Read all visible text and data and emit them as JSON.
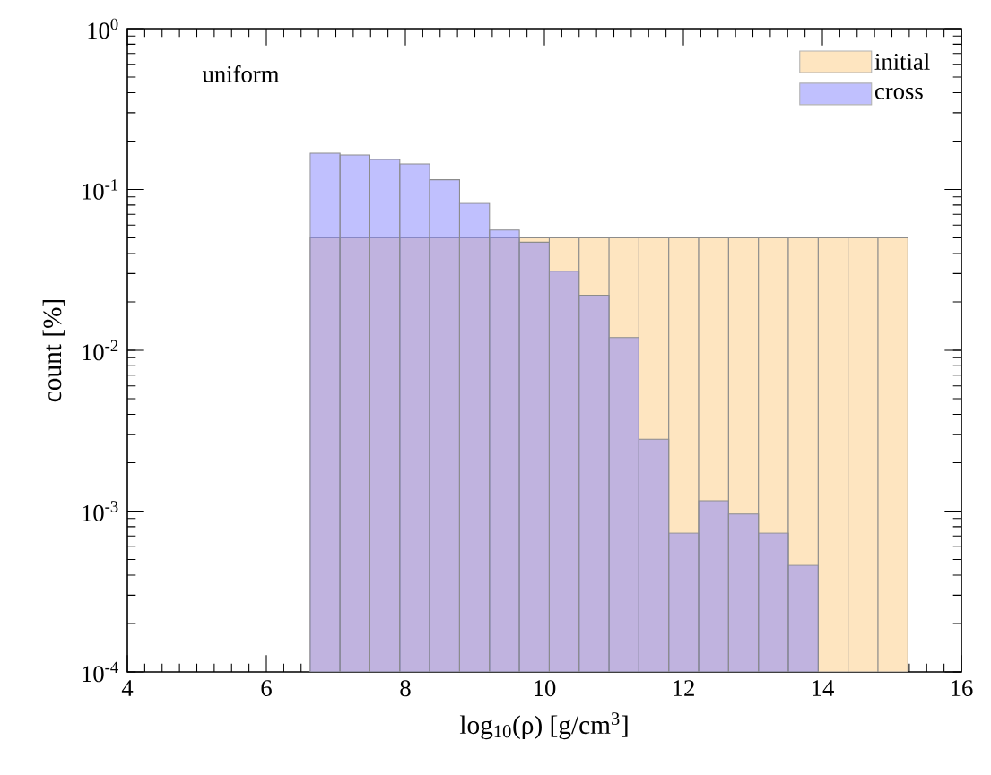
{
  "chart_data": {
    "type": "histogram",
    "xlabel": "log$_{10}$(ρ) [g/cm$^{3}$]",
    "ylabel": "count [%]",
    "annotations": [
      "uniform"
    ],
    "bins": [
      6.63,
      7.06,
      7.49,
      7.92,
      8.35,
      8.78,
      9.21,
      9.64,
      10.07,
      10.5,
      10.93,
      11.36,
      11.79,
      12.22,
      12.65,
      13.08,
      13.51,
      13.94,
      14.37,
      14.8,
      15.23
    ],
    "series": [
      {
        "name": "initial",
        "color": "#fee5c0",
        "values": [
          0.05,
          0.05,
          0.05,
          0.05,
          0.05,
          0.05,
          0.05,
          0.05,
          0.05,
          0.05,
          0.05,
          0.05,
          0.05,
          0.05,
          0.05,
          0.05,
          0.05,
          0.05,
          0.05,
          0.05
        ]
      },
      {
        "name": "cross",
        "color": "#c0c0fe",
        "values": [
          0.168,
          0.164,
          0.154,
          0.144,
          0.115,
          0.082,
          0.056,
          0.047,
          0.031,
          0.022,
          0.012,
          0.0028,
          0.00073,
          0.00116,
          0.00096,
          0.00073,
          0.00046,
          null,
          null,
          null
        ]
      }
    ],
    "xlim": [
      4,
      16
    ],
    "xticks": [
      4,
      6,
      8,
      10,
      12,
      14,
      16
    ],
    "ylim": [
      0.0001,
      1
    ],
    "log": "y",
    "yticks": [
      {
        "value": 0.0001,
        "label": "10$^{-4}$"
      },
      {
        "value": 0.001,
        "label": "10$^{-3}$"
      },
      {
        "value": 0.01,
        "label": "10$^{-2}$"
      },
      {
        "value": 0.1,
        "label": "10$^{-1}$"
      },
      {
        "value": 1,
        "label": "10$^{0}$"
      }
    ],
    "grid": false,
    "legend": "top right"
  }
}
